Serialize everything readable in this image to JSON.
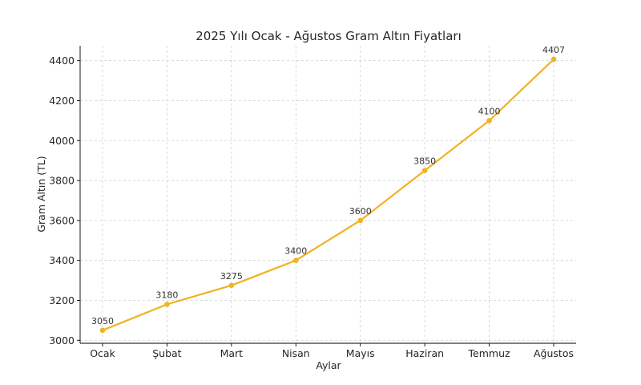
{
  "chart_data": {
    "type": "line",
    "title": "2025 Yılı Ocak - Ağustos Gram Altın Fiyatları",
    "xlabel": "Aylar",
    "ylabel": "Gram Altın (TL)",
    "categories": [
      "Ocak",
      "Şubat",
      "Mart",
      "Nisan",
      "Mayıs",
      "Haziran",
      "Temmuz",
      "Ağustos"
    ],
    "series": [
      {
        "values": [
          3050,
          3180,
          3275,
          3400,
          3600,
          3850,
          4100,
          4407
        ],
        "color": "#f0b323"
      }
    ],
    "data_labels": [
      "3050",
      "3180",
      "3275",
      "3400",
      "3600",
      "3850",
      "4100",
      "4407"
    ],
    "ylim": [
      2985,
      4475
    ],
    "yticks": [
      3000,
      3200,
      3400,
      3600,
      3800,
      4000,
      4200,
      4400
    ],
    "grid": true,
    "colors": {
      "line": "#f0b323",
      "grid": "#b0b0b0",
      "text": "#262626"
    }
  }
}
